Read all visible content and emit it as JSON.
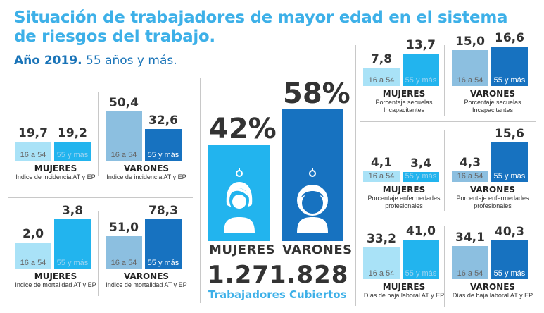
{
  "title": "Situación de trabajadores de mayor edad en el sistema de riesgos del trabajo.",
  "year_bold": "Año 2019.",
  "year_rest": "55 años y más.",
  "colors": {
    "light": "#a9e2f7",
    "cyan": "#22b4ee",
    "steel": "#8cbfe0",
    "navy": "#1772c0",
    "title": "#3db0e8"
  },
  "age_labels": {
    "young": "16 a 54",
    "old": "55 y más"
  },
  "center": {
    "mujeres_pct": "42%",
    "varones_pct": "58%",
    "mujeres_label": "MUJERES",
    "varones_label": "VARONES",
    "total": "1.271.828",
    "total_label": "Trabajadores Cubiertos",
    "icons": [
      "woman-icon",
      "man-icon"
    ]
  },
  "left": [
    {
      "group": "MUJERES",
      "metric": "Indice de incidencia AT y EP",
      "young": "19,7",
      "old": "19,2",
      "young_v": 19.7,
      "old_v": 19.2
    },
    {
      "group": "VARONES",
      "metric": "Indice de incidencia AT y EP",
      "young": "50,4",
      "old": "32,6",
      "young_v": 50.4,
      "old_v": 32.6
    },
    {
      "group": "MUJERES",
      "metric": "Indice de mortalidad AT y EP",
      "young": "2,0",
      "old": "3,8",
      "young_v": 2.0,
      "old_v": 3.8
    },
    {
      "group": "VARONES",
      "metric": "Indice de mortalidad AT y EP",
      "young": "51,0",
      "old": "78,3",
      "young_v": 51.0,
      "old_v": 78.3
    }
  ],
  "right": [
    {
      "group": "MUJERES",
      "metric": "Porcentaje secuelas Incapacitantes",
      "young": "7,8",
      "old": "13,7",
      "young_v": 7.8,
      "old_v": 13.7
    },
    {
      "group": "VARONES",
      "metric": "Porcentaje secuelas Incapacitantes",
      "young": "15,0",
      "old": "16,6",
      "young_v": 15.0,
      "old_v": 16.6
    },
    {
      "group": "MUJERES",
      "metric": "Porcentaje enfermedades profesionales",
      "young": "4,1",
      "old": "3,4",
      "young_v": 4.1,
      "old_v": 3.4
    },
    {
      "group": "VARONES",
      "metric": "Porcentaje enfermedades profesionales",
      "young": "4,3",
      "old": "15,6",
      "young_v": 4.3,
      "old_v": 15.6
    },
    {
      "group": "MUJERES",
      "metric": "Días de baja laboral AT y EP",
      "young": "33,2",
      "old": "41,0",
      "young_v": 33.2,
      "old_v": 41.0
    },
    {
      "group": "VARONES",
      "metric": "Días de baja laboral AT y EP",
      "young": "34,1",
      "old": "40,3",
      "young_v": 34.1,
      "old_v": 40.3
    }
  ]
}
